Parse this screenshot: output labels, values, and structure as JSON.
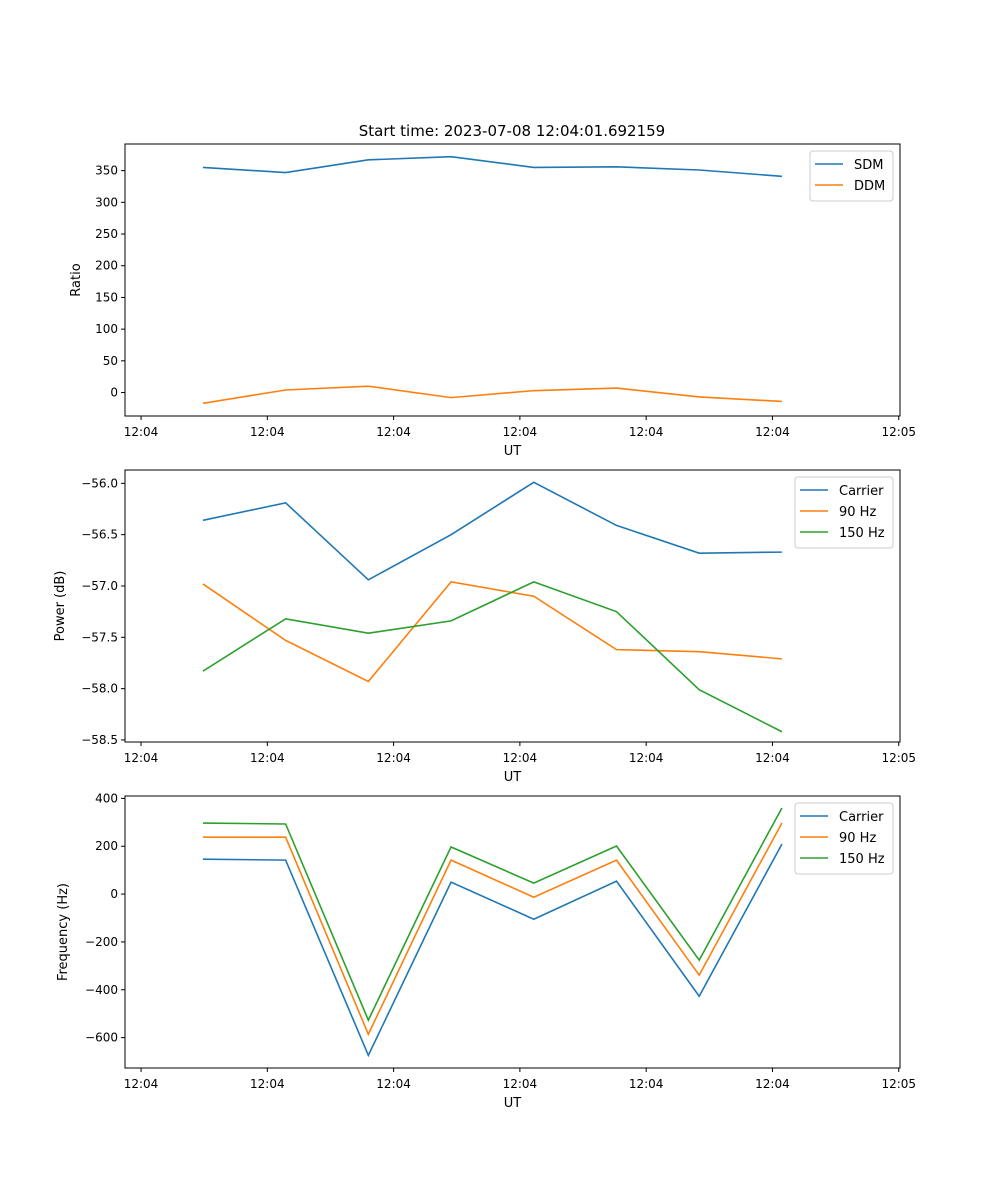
{
  "title": "Start time: 2023-07-08 12:04:01.692159",
  "chart_data": [
    {
      "type": "line",
      "title": "Start time: 2023-07-08 12:04:01.692159",
      "xlabel": "UT",
      "ylabel": "Ratio",
      "x_seconds_after_1204": [
        4.9,
        11.45,
        18.0,
        24.55,
        31.1,
        37.65,
        44.2,
        50.75
      ],
      "xlim": [
        -1.27,
        60.1
      ],
      "xticks": [
        0,
        10,
        20,
        30,
        40,
        50,
        60
      ],
      "xtick_labels": [
        "12:04",
        "12:04",
        "12:04",
        "12:04",
        "12:04",
        "12:04",
        "12:05"
      ],
      "ylim": [
        -37,
        392
      ],
      "yticks": [
        0,
        50,
        100,
        150,
        200,
        250,
        300,
        350
      ],
      "ytick_labels": [
        "0",
        "50",
        "100",
        "150",
        "200",
        "250",
        "300",
        "350"
      ],
      "legend": "top-right",
      "series": [
        {
          "name": "SDM",
          "color": "#1f77b4",
          "values": [
            355,
            347,
            367,
            372,
            355,
            356,
            351,
            341
          ]
        },
        {
          "name": "DDM",
          "color": "#ff7f0e",
          "values": [
            -17,
            4,
            10,
            -8,
            3,
            7,
            -7,
            -14
          ]
        }
      ]
    },
    {
      "type": "line",
      "xlabel": "UT",
      "ylabel": "Power (dB)",
      "x_seconds_after_1204": [
        4.9,
        11.45,
        18.0,
        24.55,
        31.1,
        37.65,
        44.2,
        50.75
      ],
      "xlim": [
        -1.27,
        60.1
      ],
      "xticks": [
        0,
        10,
        20,
        30,
        40,
        50,
        60
      ],
      "xtick_labels": [
        "12:04",
        "12:04",
        "12:04",
        "12:04",
        "12:04",
        "12:04",
        "12:05"
      ],
      "ylim": [
        -58.52,
        -55.87
      ],
      "yticks": [
        -56.0,
        -56.5,
        -57.0,
        -57.5,
        -58.0,
        -58.5
      ],
      "ytick_labels": [
        "−56.0",
        "−56.5",
        "−57.0",
        "−57.5",
        "−58.0",
        "−58.5"
      ],
      "legend": "top-right",
      "series": [
        {
          "name": "Carrier",
          "color": "#1f77b4",
          "values": [
            -56.36,
            -56.19,
            -56.94,
            -56.5,
            -55.99,
            -56.41,
            -56.68,
            -56.67
          ]
        },
        {
          "name": "90 Hz",
          "color": "#ff7f0e",
          "values": [
            -56.98,
            -57.53,
            -57.93,
            -56.96,
            -57.1,
            -57.62,
            -57.64,
            -57.71
          ]
        },
        {
          "name": "150 Hz",
          "color": "#2ca02c",
          "values": [
            -57.83,
            -57.32,
            -57.46,
            -57.34,
            -56.96,
            -57.25,
            -58.01,
            -58.42
          ]
        }
      ]
    },
    {
      "type": "line",
      "xlabel": "UT",
      "ylabel": "Frequency (Hz)",
      "x_seconds_after_1204": [
        4.9,
        11.45,
        18.0,
        24.55,
        31.1,
        37.65,
        44.2,
        50.75
      ],
      "xlim": [
        -1.27,
        60.1
      ],
      "xticks": [
        0,
        10,
        20,
        30,
        40,
        50,
        60
      ],
      "xtick_labels": [
        "12:04",
        "12:04",
        "12:04",
        "12:04",
        "12:04",
        "12:04",
        "12:05"
      ],
      "ylim": [
        -727,
        410
      ],
      "yticks": [
        400,
        200,
        0,
        -200,
        -400,
        -600
      ],
      "ytick_labels": [
        "400",
        "200",
        "0",
        "−200",
        "−400",
        "−600"
      ],
      "legend": "top-right",
      "series": [
        {
          "name": "Carrier",
          "color": "#1f77b4",
          "values": [
            146,
            142,
            -674,
            50,
            -105,
            54,
            -427,
            209
          ]
        },
        {
          "name": "90 Hz",
          "color": "#ff7f0e",
          "values": [
            238,
            238,
            -586,
            142,
            -13,
            142,
            -339,
            297
          ]
        },
        {
          "name": "150 Hz",
          "color": "#2ca02c",
          "values": [
            297,
            293,
            -527,
            197,
            46,
            201,
            -276,
            360
          ]
        }
      ]
    }
  ]
}
